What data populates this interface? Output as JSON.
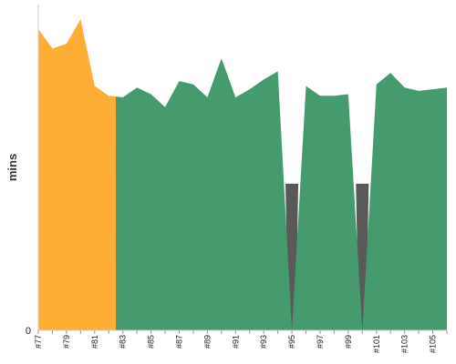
{
  "chart_data": {
    "type": "area",
    "ylabel": "mins",
    "y_tick_labels": [
      "0"
    ],
    "ylim": [
      0,
      100
    ],
    "x": [
      77,
      78,
      79,
      80,
      81,
      82,
      83,
      84,
      85,
      86,
      87,
      88,
      89,
      90,
      91,
      92,
      93,
      94,
      95,
      96,
      97,
      98,
      99,
      100,
      101,
      102,
      103,
      104,
      105,
      106
    ],
    "x_tick_labels": [
      "#77",
      "#79",
      "#81",
      "#83",
      "#85",
      "#87",
      "#89",
      "#91",
      "#93",
      "#95",
      "#97",
      "#99",
      "#101",
      "#103",
      "#105"
    ],
    "values": [
      92.5,
      86.5,
      88,
      95.5,
      75,
      72,
      71.5,
      74.5,
      72.5,
      68.5,
      76.5,
      75.5,
      71.5,
      83.5,
      71.5,
      74,
      77,
      79.5,
      0,
      75,
      72,
      72,
      72.5,
      0,
      75.5,
      79,
      74.5,
      73.5,
      74,
      74.5
    ],
    "segments": [
      {
        "from": 77,
        "to": 82.5,
        "color": "#ffae35"
      },
      {
        "from": 82.5,
        "to": 106,
        "color": "#459b6e"
      }
    ],
    "failed_color": "#595959",
    "grid": false
  }
}
